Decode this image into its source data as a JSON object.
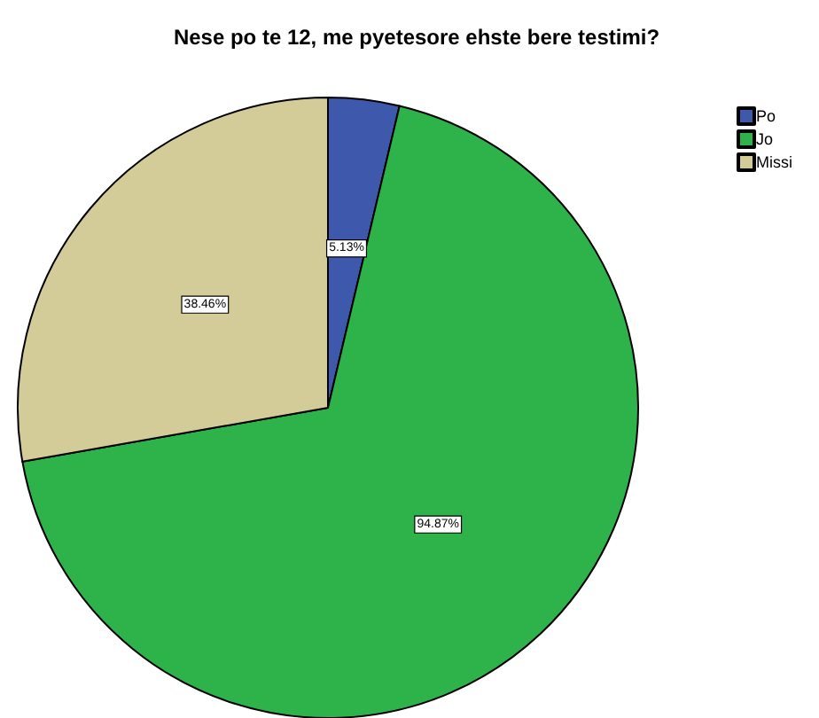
{
  "chart_data": {
    "type": "pie",
    "title": "Nese po te 12, me pyetesore ehste bere testimi?",
    "categories": [
      "Po",
      "Jo",
      "Missi"
    ],
    "values": [
      5.13,
      94.87,
      38.46
    ],
    "value_labels": [
      "5.13%",
      "94.87%",
      "38.46%"
    ],
    "colors": [
      "#3e58ac",
      "#2db34a",
      "#d4cc98"
    ],
    "legend": "top right"
  }
}
